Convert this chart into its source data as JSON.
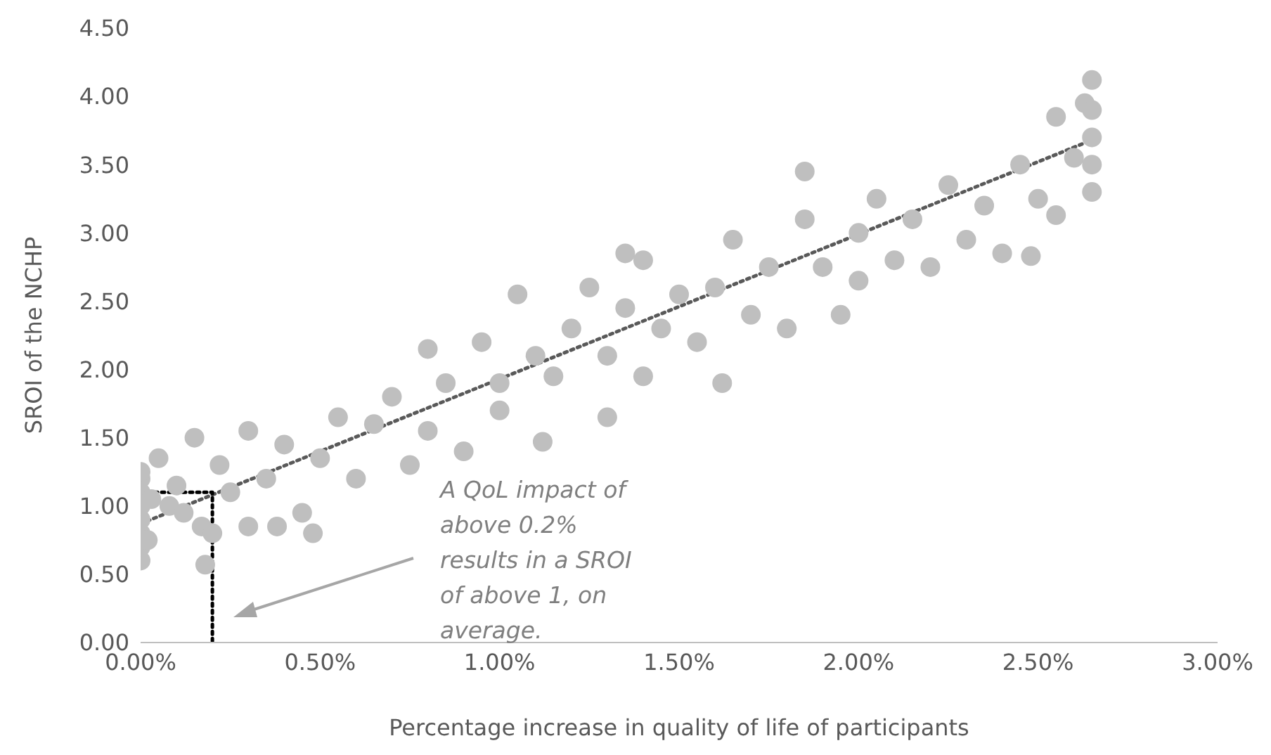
{
  "chart_data": {
    "type": "scatter",
    "xlabel": "Percentage increase in quality of life of participants",
    "ylabel": "SROI of the NCHP",
    "xlim": [
      0,
      3
    ],
    "xticks": [
      {
        "value": 0,
        "label": "0.00%"
      },
      {
        "value": 0.5,
        "label": "0.50%"
      },
      {
        "value": 1,
        "label": "1.00%"
      },
      {
        "value": 1.5,
        "label": "1.50%"
      },
      {
        "value": 2,
        "label": "2.00%"
      },
      {
        "value": 2.5,
        "label": "2.50%"
      },
      {
        "value": 3,
        "label": "3.00%"
      }
    ],
    "ylim": [
      0,
      4.5
    ],
    "yticks": [
      {
        "value": 0,
        "label": "0.00"
      },
      {
        "value": 0.5,
        "label": "0.50"
      },
      {
        "value": 1,
        "label": "1.00"
      },
      {
        "value": 1.5,
        "label": "1.50"
      },
      {
        "value": 2,
        "label": "2.00"
      },
      {
        "value": 2.5,
        "label": "2.50"
      },
      {
        "value": 3,
        "label": "3.00"
      },
      {
        "value": 3.5,
        "label": "3.50"
      },
      {
        "value": 4,
        "label": "4.00"
      },
      {
        "value": 4.5,
        "label": "4.50"
      }
    ],
    "series": [
      {
        "color": "#bfbfbf",
        "marker": "circle",
        "x": [
          0,
          0,
          0,
          0,
          0,
          0,
          0,
          0,
          0.02,
          0.03,
          0.05,
          0.08,
          0.1,
          0.12,
          0.15,
          0.17,
          0.18,
          0.2,
          0.22,
          0.25,
          0.3,
          0.3,
          0.35,
          0.38,
          0.4,
          0.45,
          0.48,
          0.5,
          0.55,
          0.6,
          0.65,
          0.7,
          0.75,
          0.8,
          0.8,
          0.85,
          0.9,
          0.95,
          1.0,
          1.0,
          1.05,
          1.1,
          1.12,
          1.15,
          1.2,
          1.25,
          1.3,
          1.3,
          1.35,
          1.35,
          1.4,
          1.4,
          1.45,
          1.5,
          1.55,
          1.6,
          1.62,
          1.65,
          1.7,
          1.75,
          1.8,
          1.85,
          1.85,
          1.9,
          1.95,
          2.0,
          2.0,
          2.05,
          2.1,
          2.15,
          2.2,
          2.25,
          2.3,
          2.35,
          2.4,
          2.45,
          2.48,
          2.5,
          2.55,
          2.55,
          2.6,
          2.63,
          2.65,
          2.65,
          2.65,
          2.65,
          2.65
        ],
        "values": [
          0.6,
          0.7,
          0.8,
          0.9,
          1.0,
          1.1,
          1.2,
          1.25,
          0.75,
          1.05,
          1.35,
          1.0,
          1.15,
          0.95,
          1.5,
          0.85,
          0.57,
          0.8,
          1.3,
          1.1,
          0.85,
          1.55,
          1.2,
          0.85,
          1.45,
          0.95,
          0.8,
          1.35,
          1.65,
          1.2,
          1.6,
          1.8,
          1.3,
          1.55,
          2.15,
          1.9,
          1.4,
          2.2,
          1.9,
          1.7,
          2.55,
          2.1,
          1.47,
          1.95,
          2.3,
          2.6,
          1.65,
          2.1,
          2.45,
          2.85,
          1.95,
          2.8,
          2.3,
          2.55,
          2.2,
          2.6,
          1.9,
          2.95,
          2.4,
          2.75,
          2.3,
          3.1,
          3.45,
          2.75,
          2.4,
          3.0,
          2.65,
          3.25,
          2.8,
          3.1,
          2.75,
          3.35,
          2.95,
          3.2,
          2.85,
          3.5,
          2.83,
          3.25,
          3.85,
          3.13,
          3.55,
          3.95,
          3.3,
          3.5,
          3.7,
          3.9,
          4.12
        ]
      },
      {
        "type": "line",
        "color": "#595959",
        "line_style": "dotted",
        "x": [
          0,
          2.65
        ],
        "values": [
          0.87,
          3.68
        ]
      },
      {
        "type": "line",
        "color": "#000000",
        "line_style": "dotted",
        "x": [
          0,
          0.2,
          0.2
        ],
        "values": [
          1.1,
          1.1,
          0
        ]
      }
    ],
    "annotations": [
      "A QoL impact of\nabove 0.2%\nresults in a SROI\nof above 1, on\naverage."
    ]
  }
}
